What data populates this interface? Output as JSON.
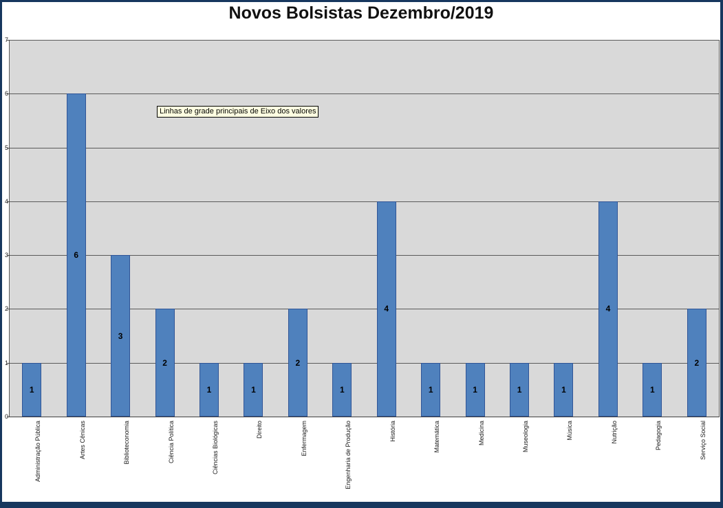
{
  "window": {
    "title": "Novos Bolsistas Dezembro/2019"
  },
  "tooltip": {
    "text": "Linhas de grade principais de Eixo dos valores"
  },
  "chart_data": {
    "type": "bar",
    "title": "Novos Bolsistas Dezembro/2019",
    "categories": [
      "Administração Pública",
      "Artes Cênicas",
      "Biblioteconomia",
      "Ciência Política",
      "Ciências Biológicas",
      "Direito",
      "Enfermagem",
      "Engenharia de Produção",
      "História",
      "Matemática",
      "Medicina",
      "Museologia",
      "Música",
      "Nutrição",
      "Pedagogia",
      "Serviço Social"
    ],
    "values": [
      1,
      6,
      3,
      2,
      1,
      1,
      2,
      1,
      4,
      1,
      1,
      1,
      1,
      4,
      1,
      2
    ],
    "data_labels": [
      1,
      6,
      3,
      2,
      1,
      1,
      2,
      1,
      4,
      1,
      1,
      1,
      1,
      4,
      1,
      2
    ],
    "xlabel": "",
    "ylabel": "",
    "ylim": [
      0,
      7
    ],
    "yticks": [
      0,
      1,
      2,
      3,
      4,
      5,
      6,
      7
    ],
    "grid": "horizontal-major",
    "legend": "none",
    "bar_color": "#4F81BD",
    "bar_border_color": "#2F5496",
    "plot_background": "#D9D9D9",
    "window_border_color": "#17375E"
  }
}
